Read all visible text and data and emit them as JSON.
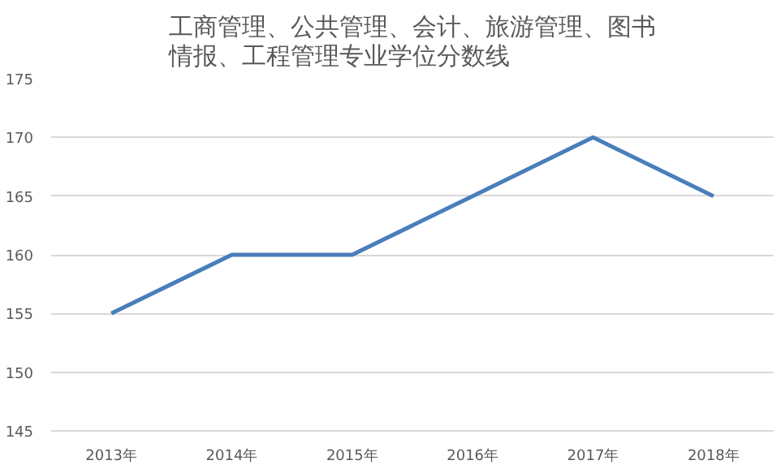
{
  "chart_data": {
    "type": "line",
    "title": "工商管理、公共管理、会计、旅游管理、图书情报、工程管理专业学位分数线",
    "categories": [
      "2013年",
      "2014年",
      "2015年",
      "2016年",
      "2017年",
      "2018年"
    ],
    "series": [
      {
        "color": "#4a7ebb",
        "values": [
          155,
          160,
          160,
          165,
          170,
          165
        ]
      }
    ],
    "ylim": [
      145,
      175
    ],
    "yticks": [
      145,
      150,
      155,
      160,
      165,
      170,
      175
    ],
    "grid": "y",
    "marker": "none",
    "line_style": "solid"
  }
}
